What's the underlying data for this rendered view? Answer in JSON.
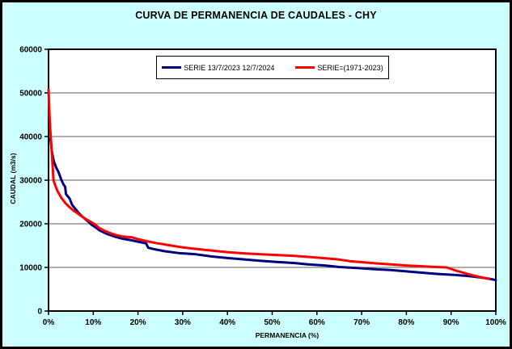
{
  "chart_data": {
    "type": "line",
    "title": "CURVA DE PERMANENCIA DE CAUDALES - CHY",
    "xlabel": "PERMANENCIA (%)",
    "ylabel": "CAUDAL (m3/s)",
    "xlim": [
      0,
      100
    ],
    "ylim": [
      0,
      60000
    ],
    "x_ticks": [
      0,
      10,
      20,
      30,
      40,
      50,
      60,
      70,
      80,
      90,
      100
    ],
    "x_tick_labels": [
      "0%",
      "10%",
      "20%",
      "30%",
      "40%",
      "50%",
      "60%",
      "70%",
      "80%",
      "90%",
      "100%"
    ],
    "y_ticks": [
      0,
      10000,
      20000,
      30000,
      40000,
      50000,
      60000
    ],
    "y_tick_labels": [
      "0",
      "10000",
      "20000",
      "30000",
      "40000",
      "50000",
      "60000"
    ],
    "grid": "horizontal-gray",
    "legend_position": "top-center-inside",
    "plot_background": "#FFFFFF",
    "page_background": "#CCFFFF",
    "gridline_color": "#808080",
    "series": [
      {
        "name": "SERIE 13/7/2023 12/7/2024",
        "color": "#000080",
        "points": [
          [
            0.3,
            39500
          ],
          [
            0.5,
            38800
          ],
          [
            0.8,
            36200
          ],
          [
            1.2,
            34300
          ],
          [
            1.7,
            32900
          ],
          [
            2.2,
            31900
          ],
          [
            2.9,
            30000
          ],
          [
            3.4,
            28900
          ],
          [
            3.7,
            28500
          ],
          [
            3.9,
            26800
          ],
          [
            4.7,
            25800
          ],
          [
            5.3,
            24300
          ],
          [
            6.0,
            23400
          ],
          [
            6.8,
            22400
          ],
          [
            7.5,
            21700
          ],
          [
            8.3,
            21000
          ],
          [
            9.0,
            20400
          ],
          [
            9.6,
            19800
          ],
          [
            10.5,
            19200
          ],
          [
            11.4,
            18500
          ],
          [
            13.0,
            17700
          ],
          [
            15.0,
            17000
          ],
          [
            16.5,
            16600
          ],
          [
            18.6,
            16200
          ],
          [
            20.0,
            15900
          ],
          [
            21.8,
            15500
          ],
          [
            22.3,
            14500
          ],
          [
            23.5,
            14200
          ],
          [
            26.0,
            13700
          ],
          [
            29.0,
            13300
          ],
          [
            33.0,
            13000
          ],
          [
            36.5,
            12500
          ],
          [
            40.0,
            12150
          ],
          [
            44.0,
            11800
          ],
          [
            47.5,
            11500
          ],
          [
            51.0,
            11250
          ],
          [
            55.0,
            11000
          ],
          [
            58.0,
            10700
          ],
          [
            62.0,
            10400
          ],
          [
            65.0,
            10100
          ],
          [
            69.0,
            9850
          ],
          [
            73.0,
            9600
          ],
          [
            76.5,
            9400
          ],
          [
            80.0,
            9100
          ],
          [
            84.0,
            8750
          ],
          [
            87.0,
            8500
          ],
          [
            91.0,
            8250
          ],
          [
            94.0,
            8000
          ],
          [
            96.5,
            7700
          ],
          [
            98.5,
            7400
          ],
          [
            100.0,
            7100
          ]
        ]
      },
      {
        "name": "SERIE=(1971-2023)",
        "color": "#FF0000",
        "points": [
          [
            0.0,
            50800
          ],
          [
            0.2,
            45500
          ],
          [
            0.4,
            41500
          ],
          [
            0.6,
            38500
          ],
          [
            0.9,
            33500
          ],
          [
            1.1,
            30000
          ],
          [
            1.5,
            28800
          ],
          [
            2.0,
            27500
          ],
          [
            2.9,
            25900
          ],
          [
            3.8,
            24700
          ],
          [
            4.7,
            23800
          ],
          [
            5.6,
            23000
          ],
          [
            6.5,
            22400
          ],
          [
            7.4,
            21700
          ],
          [
            8.3,
            21100
          ],
          [
            9.2,
            20600
          ],
          [
            10.2,
            20000
          ],
          [
            11.4,
            19000
          ],
          [
            12.5,
            18400
          ],
          [
            14.0,
            17800
          ],
          [
            15.0,
            17450
          ],
          [
            16.5,
            17100
          ],
          [
            18.6,
            16900
          ],
          [
            20.0,
            16500
          ],
          [
            22.0,
            16000
          ],
          [
            24.0,
            15600
          ],
          [
            26.0,
            15250
          ],
          [
            28.0,
            14900
          ],
          [
            30.0,
            14600
          ],
          [
            33.0,
            14250
          ],
          [
            36.0,
            13900
          ],
          [
            40.0,
            13500
          ],
          [
            44.0,
            13200
          ],
          [
            47.5,
            13000
          ],
          [
            51.0,
            12850
          ],
          [
            55.0,
            12650
          ],
          [
            58.0,
            12400
          ],
          [
            62.0,
            12100
          ],
          [
            65.0,
            11800
          ],
          [
            67.5,
            11400
          ],
          [
            70.0,
            11200
          ],
          [
            73.0,
            10950
          ],
          [
            76.5,
            10700
          ],
          [
            80.0,
            10450
          ],
          [
            84.0,
            10230
          ],
          [
            86.5,
            10100
          ],
          [
            89.0,
            10000
          ],
          [
            91.0,
            9300
          ],
          [
            94.0,
            8400
          ],
          [
            96.0,
            7900
          ],
          [
            98.5,
            7350
          ]
        ]
      }
    ]
  }
}
